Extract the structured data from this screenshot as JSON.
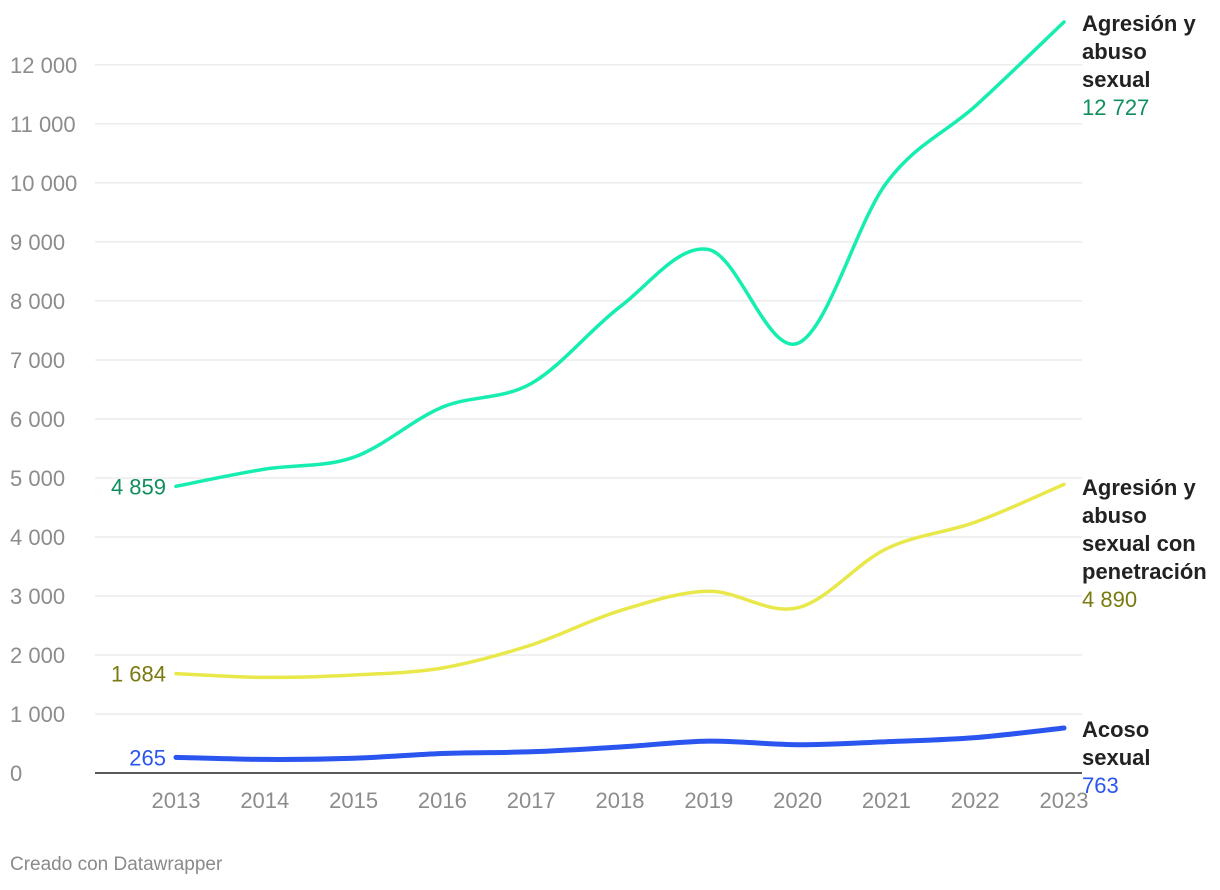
{
  "chart_data": {
    "type": "line",
    "x": [
      2013,
      2014,
      2015,
      2016,
      2017,
      2018,
      2019,
      2020,
      2021,
      2022,
      2023
    ],
    "x_tick_labels": [
      "2013",
      "2014",
      "2015",
      "2016",
      "2017",
      "2018",
      "2019",
      "2020",
      "2021",
      "2022",
      "2023"
    ],
    "y_ticks": [
      0,
      1000,
      2000,
      3000,
      4000,
      5000,
      6000,
      7000,
      8000,
      9000,
      10000,
      11000,
      12000
    ],
    "y_tick_labels": [
      "0",
      "1 000",
      "2 000",
      "3 000",
      "4 000",
      "5 000",
      "6 000",
      "7 000",
      "8 000",
      "9 000",
      "10 000",
      "11 000",
      "12 000"
    ],
    "ylim": [
      0,
      12727
    ],
    "grid": true,
    "series": [
      {
        "name_lines": [
          "Agresión y",
          "abuso",
          "sexual"
        ],
        "values": [
          4859,
          5150,
          5350,
          6200,
          6600,
          7900,
          8870,
          7280,
          10000,
          11300,
          12727
        ],
        "color": "#16eeb0",
        "label_color": "#0f8f5e",
        "start_label": "4 859",
        "end_label": "12 727"
      },
      {
        "name_lines": [
          "Agresión y",
          "abuso",
          "sexual con",
          "penetración"
        ],
        "values": [
          1684,
          1620,
          1660,
          1780,
          2170,
          2750,
          3080,
          2800,
          3800,
          4250,
          4890
        ],
        "color": "#e8e84a",
        "label_color": "#7a7a10",
        "start_label": "1 684",
        "end_label": "4 890"
      },
      {
        "name_lines": [
          "Acoso",
          "sexual"
        ],
        "values": [
          265,
          230,
          250,
          330,
          360,
          440,
          540,
          480,
          530,
          600,
          763
        ],
        "color": "#2a55ee",
        "label_color": "#2a55ee",
        "start_label": "265",
        "end_label": "763"
      }
    ]
  },
  "credit": "Creado con Datawrapper"
}
